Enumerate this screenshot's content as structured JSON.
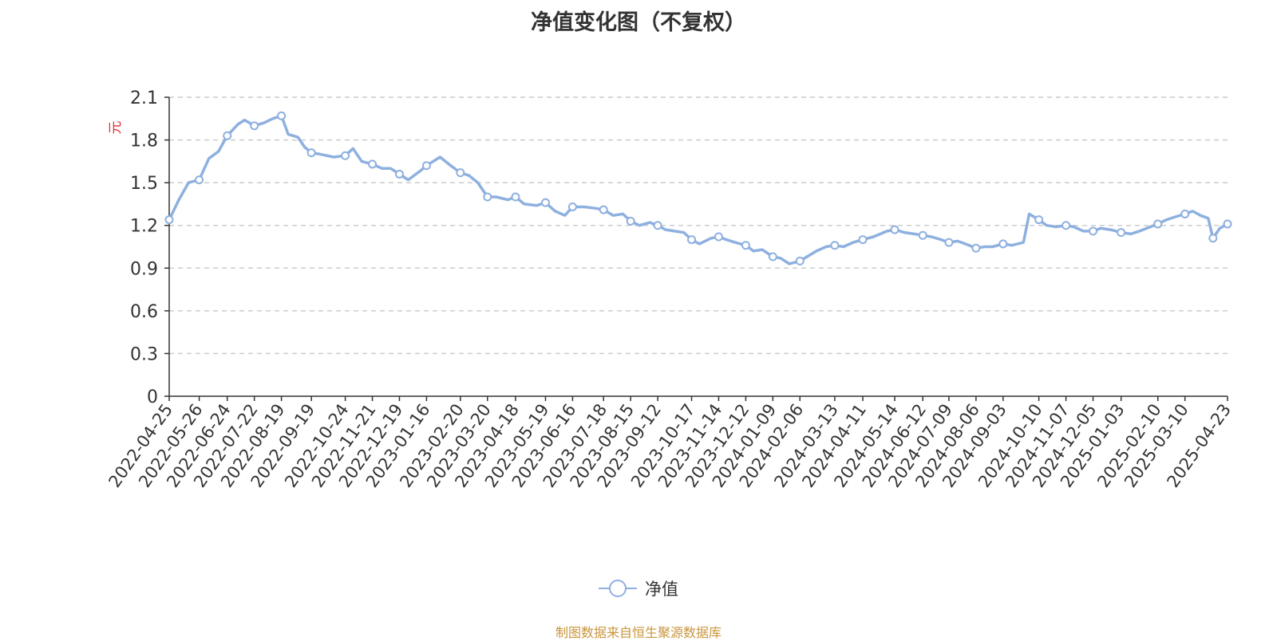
{
  "title": "净值变化图（不复权）",
  "source": "制图数据来自恒生聚源数据库",
  "chart_data": {
    "type": "line",
    "title": "净值变化图（不复权）",
    "ylabel": "元",
    "ylim": [
      0,
      2.1
    ],
    "yticks": [
      0,
      0.3,
      0.6,
      0.9,
      1.2,
      1.5,
      1.8,
      2.1
    ],
    "grid": true,
    "legend_position": "bottom-center",
    "x_tick_labels": [
      "2022-04-25",
      "2022-05-26",
      "2022-06-24",
      "2022-07-22",
      "2022-08-19",
      "2022-09-19",
      "2022-10-24",
      "2022-11-21",
      "2022-12-19",
      "2023-01-16",
      "2023-02-20",
      "2023-03-20",
      "2023-04-18",
      "2023-05-19",
      "2023-06-16",
      "2023-07-18",
      "2023-08-15",
      "2023-09-12",
      "2023-10-17",
      "2023-11-14",
      "2023-12-12",
      "2024-01-09",
      "2024-02-06",
      "2024-03-13",
      "2024-04-11",
      "2024-05-14",
      "2024-06-12",
      "2024-07-09",
      "2024-08-06",
      "2024-09-03",
      "2024-10-10",
      "2024-11-07",
      "2024-12-05",
      "2025-01-03",
      "2025-02-10",
      "2025-03-10",
      "2025-04-23"
    ],
    "series": [
      {
        "name": "净值",
        "color": "#8eb0df",
        "x": [
          "2022-04-25",
          "2022-05-05",
          "2022-05-15",
          "2022-05-26",
          "2022-06-05",
          "2022-06-15",
          "2022-06-24",
          "2022-07-05",
          "2022-07-12",
          "2022-07-22",
          "2022-08-01",
          "2022-08-10",
          "2022-08-19",
          "2022-08-26",
          "2022-09-05",
          "2022-09-12",
          "2022-09-19",
          "2022-09-28",
          "2022-10-12",
          "2022-10-24",
          "2022-11-01",
          "2022-11-10",
          "2022-11-21",
          "2022-12-01",
          "2022-12-10",
          "2022-12-19",
          "2022-12-28",
          "2023-01-09",
          "2023-01-16",
          "2023-01-30",
          "2023-02-10",
          "2023-02-20",
          "2023-03-01",
          "2023-03-10",
          "2023-03-20",
          "2023-03-29",
          "2023-04-10",
          "2023-04-18",
          "2023-04-27",
          "2023-05-10",
          "2023-05-19",
          "2023-05-29",
          "2023-06-08",
          "2023-06-16",
          "2023-06-28",
          "2023-07-10",
          "2023-07-18",
          "2023-07-28",
          "2023-08-07",
          "2023-08-15",
          "2023-08-24",
          "2023-09-04",
          "2023-09-12",
          "2023-09-20",
          "2023-10-09",
          "2023-10-17",
          "2023-10-25",
          "2023-11-06",
          "2023-11-14",
          "2023-11-22",
          "2023-12-01",
          "2023-12-12",
          "2023-12-20",
          "2023-12-29",
          "2024-01-09",
          "2024-01-17",
          "2024-01-26",
          "2024-02-06",
          "2024-02-23",
          "2024-03-04",
          "2024-03-13",
          "2024-03-22",
          "2024-04-01",
          "2024-04-11",
          "2024-04-22",
          "2024-05-06",
          "2024-05-14",
          "2024-05-24",
          "2024-06-03",
          "2024-06-12",
          "2024-06-21",
          "2024-07-01",
          "2024-07-09",
          "2024-07-18",
          "2024-07-26",
          "2024-08-06",
          "2024-08-15",
          "2024-08-23",
          "2024-09-03",
          "2024-09-12",
          "2024-09-24",
          "2024-09-30",
          "2024-10-10",
          "2024-10-18",
          "2024-10-28",
          "2024-11-07",
          "2024-11-15",
          "2024-11-25",
          "2024-12-05",
          "2024-12-13",
          "2024-12-23",
          "2025-01-03",
          "2025-01-13",
          "2025-01-22",
          "2025-02-10",
          "2025-02-19",
          "2025-02-28",
          "2025-03-10",
          "2025-03-18",
          "2025-03-26",
          "2025-04-03",
          "2025-04-08",
          "2025-04-15",
          "2025-04-23"
        ],
        "y": [
          1.24,
          1.38,
          1.5,
          1.52,
          1.67,
          1.72,
          1.83,
          1.91,
          1.94,
          1.9,
          1.92,
          1.95,
          1.97,
          1.84,
          1.82,
          1.75,
          1.71,
          1.7,
          1.68,
          1.69,
          1.74,
          1.65,
          1.63,
          1.6,
          1.6,
          1.56,
          1.52,
          1.58,
          1.62,
          1.68,
          1.62,
          1.57,
          1.55,
          1.5,
          1.4,
          1.4,
          1.38,
          1.4,
          1.35,
          1.34,
          1.36,
          1.3,
          1.27,
          1.33,
          1.33,
          1.32,
          1.31,
          1.27,
          1.28,
          1.23,
          1.2,
          1.22,
          1.2,
          1.17,
          1.15,
          1.1,
          1.07,
          1.11,
          1.12,
          1.1,
          1.08,
          1.06,
          1.02,
          1.03,
          0.98,
          0.97,
          0.93,
          0.95,
          1.02,
          1.05,
          1.06,
          1.05,
          1.08,
          1.1,
          1.12,
          1.16,
          1.17,
          1.15,
          1.14,
          1.13,
          1.12,
          1.1,
          1.08,
          1.09,
          1.07,
          1.04,
          1.05,
          1.05,
          1.07,
          1.06,
          1.08,
          1.28,
          1.24,
          1.2,
          1.19,
          1.2,
          1.19,
          1.16,
          1.16,
          1.18,
          1.17,
          1.15,
          1.14,
          1.16,
          1.21,
          1.24,
          1.26,
          1.28,
          1.3,
          1.27,
          1.25,
          1.11,
          1.18,
          1.21
        ],
        "markers": [
          "2022-04-25",
          "2022-05-26",
          "2022-06-24",
          "2022-07-22",
          "2022-08-19",
          "2022-09-19",
          "2022-10-24",
          "2022-11-21",
          "2022-12-19",
          "2023-01-16",
          "2023-02-20",
          "2023-03-20",
          "2023-04-18",
          "2023-05-19",
          "2023-06-16",
          "2023-07-18",
          "2023-08-15",
          "2023-09-12",
          "2023-10-17",
          "2023-11-14",
          "2023-12-12",
          "2024-01-09",
          "2024-02-06",
          "2024-03-13",
          "2024-04-11",
          "2024-05-14",
          "2024-06-12",
          "2024-07-09",
          "2024-08-06",
          "2024-09-03",
          "2024-10-10",
          "2024-11-07",
          "2024-12-05",
          "2025-01-03",
          "2025-02-10",
          "2025-03-10",
          "2025-04-08",
          "2025-04-23"
        ]
      }
    ]
  },
  "colors": {
    "line": "#8eb0df",
    "axis": "#333333",
    "grid": "#cccccc",
    "unit_label": "#e03030",
    "source_text": "#c8963c"
  }
}
